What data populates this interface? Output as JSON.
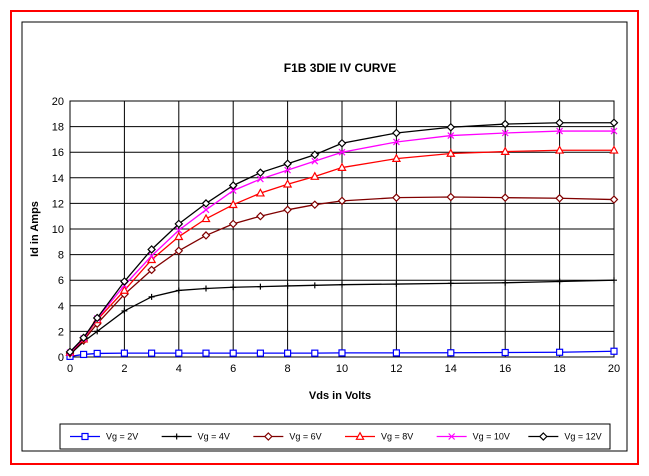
{
  "chart_data": {
    "type": "line",
    "title": "F1B 3DIE IV CURVE",
    "xlabel": "Vds in Volts",
    "ylabel": "Id in Amps",
    "xlim": [
      0,
      20
    ],
    "ylim": [
      0,
      20
    ],
    "x_ticks": [
      "0",
      "2",
      "4",
      "6",
      "8",
      "10",
      "12",
      "14",
      "16",
      "18",
      "20"
    ],
    "y_ticks": [
      "0",
      "2",
      "4",
      "6",
      "8",
      "10",
      "12",
      "14",
      "16",
      "18",
      "20"
    ],
    "grid": true,
    "legend_position": "bottom",
    "x": [
      0,
      0.5,
      1,
      2,
      3,
      4,
      5,
      6,
      7,
      8,
      9,
      10,
      12,
      14,
      16,
      18,
      20
    ],
    "series": [
      {
        "name": "Vg = 2V",
        "color": "#0000ff",
        "marker": "square",
        "values": [
          0.05,
          0.2,
          0.28,
          0.3,
          0.3,
          0.3,
          0.3,
          0.3,
          0.3,
          0.3,
          0.3,
          0.32,
          0.32,
          0.33,
          0.35,
          0.37,
          0.45
        ]
      },
      {
        "name": "Vg = 4V",
        "color": "#000000",
        "marker": "plus",
        "values": [
          0.2,
          1.2,
          2.0,
          3.6,
          4.7,
          5.2,
          5.35,
          5.45,
          5.5,
          5.55,
          5.6,
          5.65,
          5.7,
          5.75,
          5.8,
          5.9,
          6.0
        ]
      },
      {
        "name": "Vg = 6V",
        "color": "#800000",
        "marker": "diamond",
        "values": [
          0.3,
          1.3,
          2.6,
          4.9,
          6.8,
          8.3,
          9.5,
          10.4,
          11.0,
          11.5,
          11.9,
          12.2,
          12.45,
          12.5,
          12.45,
          12.4,
          12.3
        ]
      },
      {
        "name": "Vg = 8V",
        "color": "#ff0000",
        "marker": "triangle",
        "values": [
          0.35,
          1.4,
          2.9,
          5.2,
          7.6,
          9.4,
          10.8,
          11.9,
          12.8,
          13.5,
          14.1,
          14.8,
          15.5,
          15.9,
          16.05,
          16.15,
          16.15
        ]
      },
      {
        "name": "Vg = 10V",
        "color": "#ff00ff",
        "marker": "x",
        "values": [
          0.35,
          1.45,
          3.0,
          5.6,
          7.9,
          9.9,
          11.5,
          13.0,
          13.9,
          14.6,
          15.3,
          16.0,
          16.8,
          17.3,
          17.5,
          17.65,
          17.65
        ]
      },
      {
        "name": "Vg = 12V",
        "color": "#000000",
        "marker": "diamond",
        "values": [
          0.4,
          1.5,
          3.05,
          5.9,
          8.4,
          10.4,
          12.0,
          13.4,
          14.4,
          15.1,
          15.8,
          16.7,
          17.5,
          17.95,
          18.2,
          18.3,
          18.3
        ]
      }
    ]
  }
}
